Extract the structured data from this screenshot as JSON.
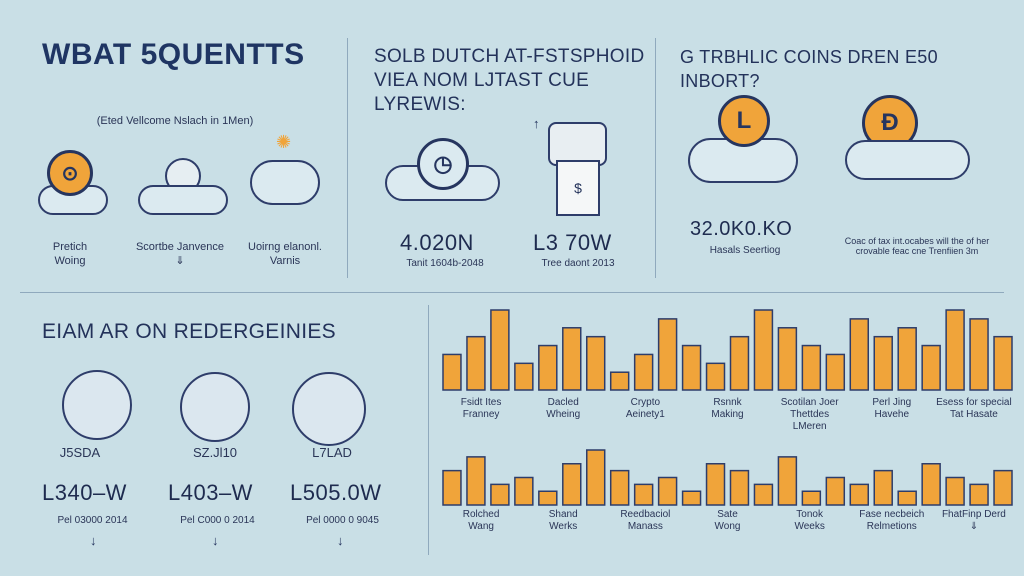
{
  "colors": {
    "background": "#c9dfe6",
    "accent_orange": "#f0a43a",
    "ink": "#23325a"
  },
  "top_left": {
    "title": "WBAT 5QUENTTS",
    "subtitle": "(Eted Vellcome Nslach in 1Men)",
    "items": [
      {
        "label": "Pretich\nWoing",
        "icon": "coin-icon"
      },
      {
        "label": "Scortbe Janvence\n⇓",
        "icon": "globe-icon"
      },
      {
        "label": "Uoirng elanonl.\nVarnis",
        "icon": "cloud-icon"
      }
    ]
  },
  "top_middle": {
    "heading": "SOLB DUTCH AT-FSTSPHOID\nVIEA NOM LJTAST CUE LYREWIS:",
    "stats": [
      {
        "value": "4.020N",
        "sub": "Tanit 1604b-2048"
      },
      {
        "value": "L3 70W",
        "sub": "Tree daont 2013"
      }
    ]
  },
  "top_right": {
    "heading": "G TRBHLIC COINS DREN E50 INBORT?",
    "value": "32.0K0.KO",
    "value_sub": "Hasals Seertiog",
    "note": "Coac of tax int.ocabes will the of her\ncrovable feac cne Trenfiien 3m",
    "coins": [
      "L",
      "Ð"
    ]
  },
  "bottom_left": {
    "heading": "EIAM AR ON REDERGEINIES",
    "items": [
      {
        "tag": "J5SDA",
        "value": "L340–W",
        "sub": "Pel 03000 2014"
      },
      {
        "tag": "SZ.Jl10",
        "value": "L403–W",
        "sub": "Pel C000 0 2014"
      },
      {
        "tag": "L7LAD",
        "value": "L505.0W",
        "sub": "Pel 0000 0 9045"
      }
    ]
  },
  "bottom_right": {
    "row1_labels": [
      "Fsidt Ites\nFranney",
      "Dacled\nWheing",
      "Crypto\nAeinety1",
      "Rsnnk\nMaking",
      "Scotilan Joer\nThettdes\nLMeren",
      "Perl Jing\nHavehe",
      "Esess for special\nTat Hasate"
    ],
    "row2_labels": [
      "Rolched\nWang",
      "Shand\nWerks",
      "Reedbaciol\nManass",
      "Sate\nWong",
      "Tonok\nWeeks",
      "Fase necbeich\nRelmetions",
      "FhatFinp Derd\n⇓"
    ],
    "chart_data": {
      "type": "bar",
      "series": [
        {
          "values": [
            4,
            6,
            9,
            3,
            5,
            7,
            6,
            2,
            4,
            8,
            5,
            3,
            6,
            9,
            7,
            5,
            4,
            8,
            6,
            7,
            5,
            9,
            8,
            6
          ]
        },
        {
          "values": [
            5,
            7,
            3,
            4,
            2,
            6,
            8,
            5,
            3,
            4,
            2,
            6,
            5,
            3,
            7,
            2,
            4,
            3,
            5,
            2,
            6,
            4,
            3,
            5
          ]
        }
      ]
    }
  }
}
